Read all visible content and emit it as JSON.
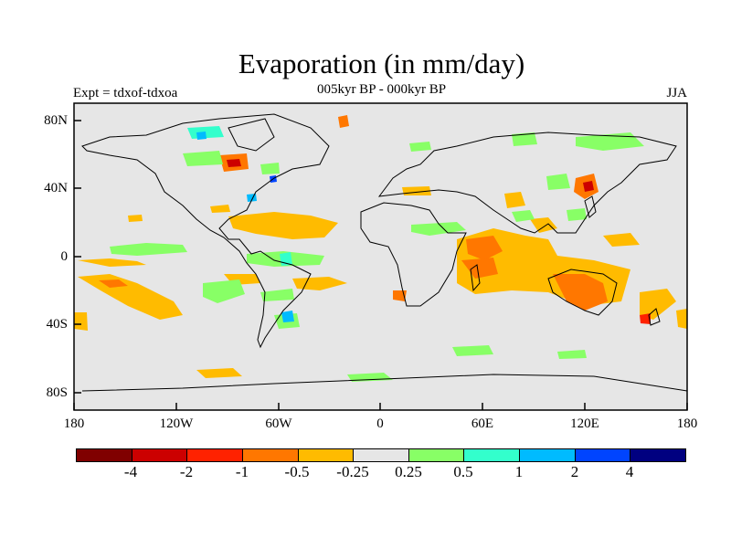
{
  "title": "Evaporation (in mm/day)",
  "subtitle": "005kyr BP - 000kyr BP",
  "experiment": "Expt = tdxof-tdxoa",
  "season": "JJA",
  "map": {
    "lat_labels": [
      "80N",
      "40N",
      "0",
      "40S",
      "80S"
    ],
    "lon_labels": [
      "180",
      "120W",
      "60W",
      "0",
      "60E",
      "120E",
      "180"
    ],
    "background_color": "#e6e6e6"
  },
  "colorbar": {
    "colors": [
      "#800000",
      "#cc0000",
      "#ff2200",
      "#ff7700",
      "#ffbb00",
      "#e6e6e6",
      "#88ff66",
      "#33ffcc",
      "#00bbff",
      "#0044ff",
      "#000080"
    ],
    "labels": [
      "-4",
      "-2",
      "-1",
      "-0.5",
      "-0.25",
      "0.25",
      "0.5",
      "1",
      "2",
      "4"
    ]
  }
}
